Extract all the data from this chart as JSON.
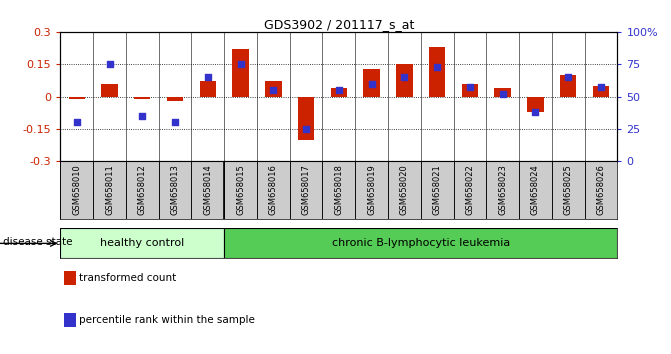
{
  "title": "GDS3902 / 201117_s_at",
  "samples": [
    "GSM658010",
    "GSM658011",
    "GSM658012",
    "GSM658013",
    "GSM658014",
    "GSM658015",
    "GSM658016",
    "GSM658017",
    "GSM658018",
    "GSM658019",
    "GSM658020",
    "GSM658021",
    "GSM658022",
    "GSM658023",
    "GSM658024",
    "GSM658025",
    "GSM658026"
  ],
  "red_values": [
    -0.01,
    0.06,
    -0.01,
    -0.02,
    0.07,
    0.22,
    0.07,
    -0.2,
    0.04,
    0.13,
    0.15,
    0.23,
    0.06,
    0.04,
    -0.07,
    0.1,
    0.05
  ],
  "blue_values_pct": [
    30,
    75,
    35,
    30,
    65,
    75,
    55,
    25,
    55,
    60,
    65,
    73,
    57,
    52,
    38,
    65,
    57
  ],
  "healthy_count": 5,
  "ylim": [
    -0.3,
    0.3
  ],
  "y2lim": [
    0,
    100
  ],
  "yticks": [
    -0.3,
    -0.15,
    0,
    0.15,
    0.3
  ],
  "y2ticks": [
    0,
    25,
    50,
    75,
    100
  ],
  "hlines": [
    0.15,
    0.0,
    -0.15
  ],
  "bar_width": 0.5,
  "red_color": "#cc2200",
  "blue_color": "#3333cc",
  "healthy_bg": "#ccffcc",
  "leukemia_bg": "#55cc55",
  "label_bg": "#cccccc",
  "disease_state_label": "disease state",
  "healthy_label": "healthy control",
  "leukemia_label": "chronic B-lymphocytic leukemia",
  "legend_red": "transformed count",
  "legend_blue": "percentile rank within the sample"
}
